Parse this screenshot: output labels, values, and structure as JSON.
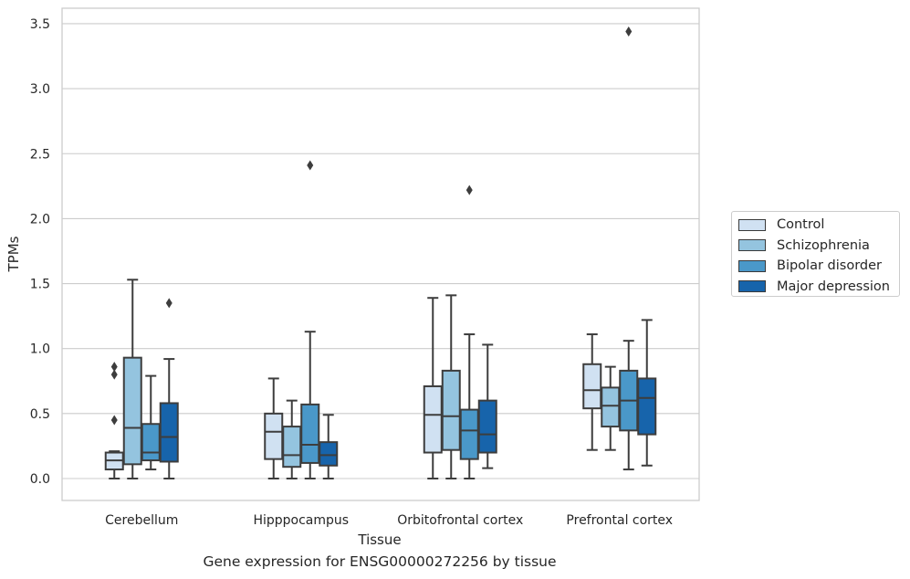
{
  "chart_data": {
    "type": "box",
    "xlabel": "Tissue",
    "ylabel": "TPMs",
    "ylim": [
      -0.17,
      3.62
    ],
    "yticks": [
      "0.0",
      "0.5",
      "1.0",
      "1.5",
      "2.0",
      "2.5",
      "3.0",
      "3.5"
    ],
    "grid": true,
    "legend_position": "right",
    "categories": [
      "Cerebellum",
      "Hipppocampus",
      "Orbitofrontal cortex",
      "Prefrontal cortex"
    ],
    "series": [
      {
        "name": "Control",
        "color": "#d0e1f2",
        "boxes": [
          {
            "whislo": 0.0,
            "q1": 0.07,
            "med": 0.14,
            "q3": 0.2,
            "whishi": 0.21,
            "fliers": [
              0.45,
              0.8,
              0.86
            ]
          },
          {
            "whislo": 0.0,
            "q1": 0.15,
            "med": 0.36,
            "q3": 0.5,
            "whishi": 0.77,
            "fliers": []
          },
          {
            "whislo": 0.0,
            "q1": 0.2,
            "med": 0.49,
            "q3": 0.71,
            "whishi": 1.39,
            "fliers": []
          },
          {
            "whislo": 0.22,
            "q1": 0.54,
            "med": 0.68,
            "q3": 0.88,
            "whishi": 1.11,
            "fliers": []
          }
        ]
      },
      {
        "name": "Schizophrenia",
        "color": "#94c4df",
        "boxes": [
          {
            "whislo": 0.0,
            "q1": 0.11,
            "med": 0.39,
            "q3": 0.93,
            "whishi": 1.53,
            "fliers": []
          },
          {
            "whislo": 0.0,
            "q1": 0.09,
            "med": 0.18,
            "q3": 0.4,
            "whishi": 0.6,
            "fliers": []
          },
          {
            "whislo": 0.0,
            "q1": 0.22,
            "med": 0.48,
            "q3": 0.83,
            "whishi": 1.41,
            "fliers": []
          },
          {
            "whislo": 0.22,
            "q1": 0.4,
            "med": 0.56,
            "q3": 0.7,
            "whishi": 0.86,
            "fliers": []
          }
        ]
      },
      {
        "name": "Bipolar disorder",
        "color": "#4a98c9",
        "boxes": [
          {
            "whislo": 0.07,
            "q1": 0.14,
            "med": 0.2,
            "q3": 0.42,
            "whishi": 0.79,
            "fliers": []
          },
          {
            "whislo": 0.0,
            "q1": 0.12,
            "med": 0.26,
            "q3": 0.57,
            "whishi": 1.13,
            "fliers": [
              2.41
            ]
          },
          {
            "whislo": 0.0,
            "q1": 0.15,
            "med": 0.37,
            "q3": 0.53,
            "whishi": 1.11,
            "fliers": [
              2.22
            ]
          },
          {
            "whislo": 0.07,
            "q1": 0.37,
            "med": 0.6,
            "q3": 0.83,
            "whishi": 1.06,
            "fliers": [
              3.44
            ]
          }
        ]
      },
      {
        "name": "Major depression",
        "color": "#1764ab",
        "boxes": [
          {
            "whislo": 0.0,
            "q1": 0.13,
            "med": 0.32,
            "q3": 0.58,
            "whishi": 0.92,
            "fliers": [
              1.35
            ]
          },
          {
            "whislo": 0.0,
            "q1": 0.1,
            "med": 0.18,
            "q3": 0.28,
            "whishi": 0.49,
            "fliers": []
          },
          {
            "whislo": 0.08,
            "q1": 0.2,
            "med": 0.34,
            "q3": 0.6,
            "whishi": 1.03,
            "fliers": []
          },
          {
            "whislo": 0.1,
            "q1": 0.34,
            "med": 0.62,
            "q3": 0.77,
            "whishi": 1.22,
            "fliers": []
          }
        ]
      }
    ]
  },
  "caption": "Gene expression for ENSG00000272256 by tissue",
  "colors": {
    "grid": "#cccccc",
    "spine": "#cccccc",
    "box_edge": "#3d3d3d"
  }
}
